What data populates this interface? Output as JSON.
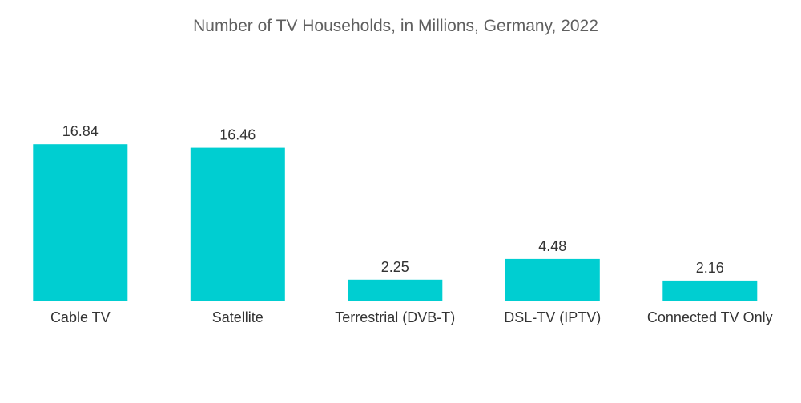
{
  "chart_data": {
    "type": "bar",
    "title": "Number of TV Households, in Millions, Germany, 2022",
    "xlabel": "",
    "ylabel": "",
    "categories": [
      "Cable TV",
      "Satellite",
      "Terrestrial (DVB-T)",
      "DSL-TV (IPTV)",
      "Connected TV Only"
    ],
    "values": [
      16.84,
      16.46,
      2.25,
      4.48,
      2.16
    ],
    "value_labels": [
      "16.84",
      "16.46",
      "2.25",
      "4.48",
      "2.16"
    ],
    "ylim": [
      0,
      17.5
    ],
    "grid": false,
    "legend": "none",
    "colors": {
      "bar": "#00ced1",
      "text": "#333333",
      "title": "#5f5f5f"
    }
  }
}
